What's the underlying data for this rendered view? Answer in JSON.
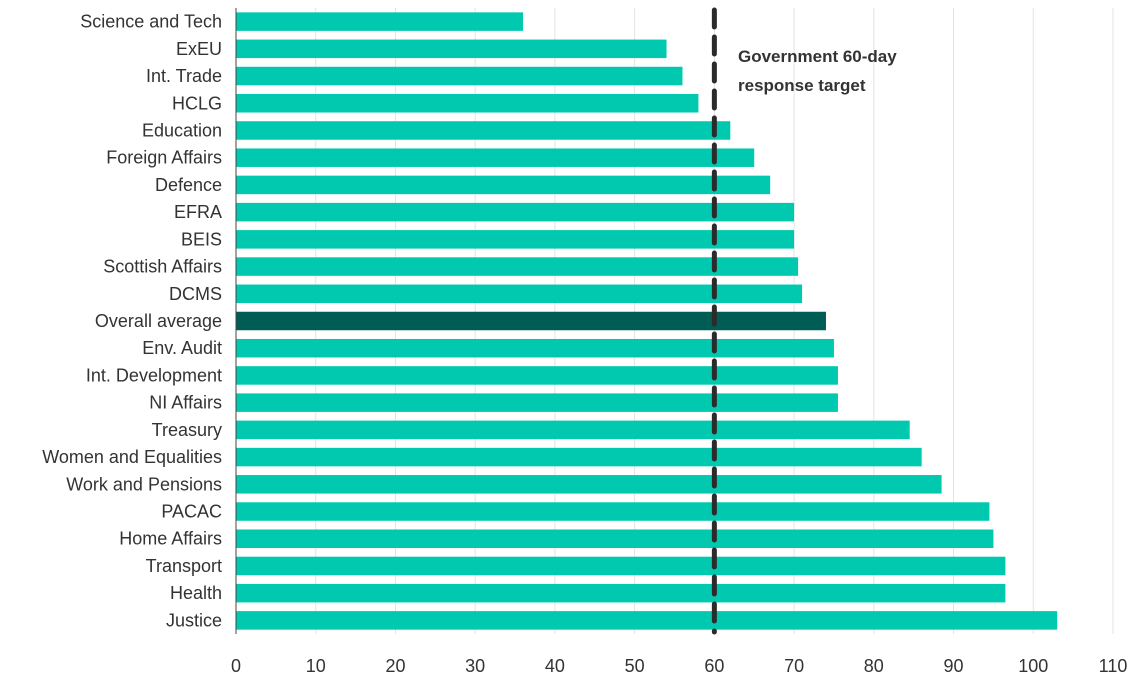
{
  "chart_data": {
    "type": "bar",
    "orientation": "horizontal",
    "title": "",
    "xlabel": "",
    "ylabel": "",
    "xlim": [
      0,
      110
    ],
    "xticks": [
      0,
      10,
      20,
      30,
      40,
      50,
      60,
      70,
      80,
      90,
      100,
      110
    ],
    "grid": true,
    "categories": [
      "Science and Tech",
      "ExEU",
      "Int. Trade",
      "HCLG",
      "Education",
      "Foreign Affairs",
      "Defence",
      "EFRA",
      "BEIS",
      "Scottish Affairs",
      "DCMS",
      "Overall average",
      "Env. Audit",
      "Int. Development",
      "NI Affairs",
      "Treasury",
      "Women and Equalities",
      "Work and Pensions",
      "PACAC",
      "Home Affairs",
      "Transport",
      "Health",
      "Justice"
    ],
    "values": [
      36,
      54,
      56,
      58,
      62,
      65,
      67,
      70,
      70,
      70.5,
      71,
      74,
      75,
      75.5,
      75.5,
      84.5,
      86,
      88.5,
      94.5,
      95,
      96.5,
      96.5,
      103
    ],
    "highlight_category": "Overall average",
    "colors": {
      "bar": "#00c9b0",
      "highlight": "#005d55",
      "grid": "#e3e3e3",
      "target_line": "#2b2b2b"
    },
    "reference_line": {
      "value": 60,
      "style": "dashed"
    },
    "annotation": {
      "lines": [
        "Government 60-day",
        "response target"
      ]
    }
  }
}
